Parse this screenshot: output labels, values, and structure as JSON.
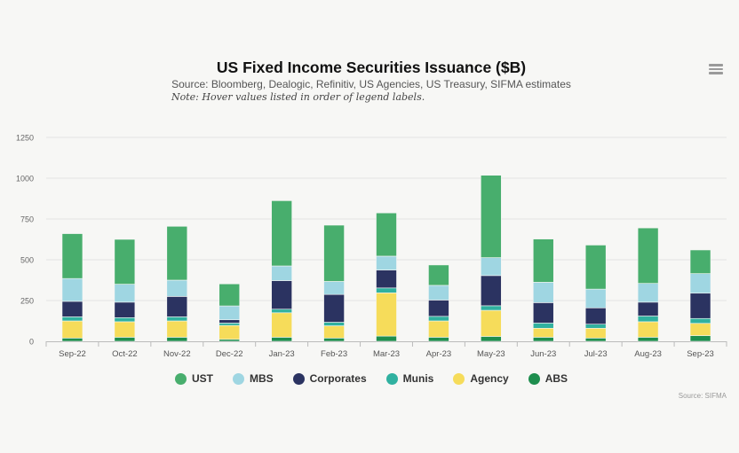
{
  "header": {
    "title": "US Fixed Income Securities Issuance ($B)",
    "subtitle": "Source: Bloomberg, Dealogic, Refinitiv, US Agencies, US Treasury, SIFMA estimates",
    "note": "Note: Hover values listed in order of legend labels."
  },
  "credit": "Source: SIFMA",
  "menu_icon": "hamburger-menu-icon",
  "colors": {
    "ABS": "#1e8e4e",
    "Agency": "#f6dc5a",
    "Munis": "#30b1a0",
    "Corporates": "#2b3361",
    "MBS": "#9fd6e2",
    "UST": "#48ae6d"
  },
  "chart_data": {
    "type": "bar",
    "stacked": true,
    "title": "US Fixed Income Securities Issuance ($B)",
    "categories": [
      "Sep-22",
      "Oct-22",
      "Nov-22",
      "Dec-22",
      "Jan-23",
      "Feb-23",
      "Mar-23",
      "Apr-23",
      "May-23",
      "Jun-23",
      "Jul-23",
      "Aug-23",
      "Sep-23"
    ],
    "ylim": [
      0,
      1250
    ],
    "yticks": [
      0,
      250,
      500,
      750,
      1000,
      1250
    ],
    "grid": true,
    "legend": "bottom",
    "series": [
      {
        "name": "ABS",
        "values": [
          20,
          25,
          25,
          12,
          25,
          20,
          32,
          25,
          30,
          25,
          20,
          25,
          35
        ]
      },
      {
        "name": "Agency",
        "values": [
          105,
          95,
          100,
          85,
          150,
          75,
          265,
          100,
          160,
          55,
          60,
          95,
          75
        ]
      },
      {
        "name": "Munis",
        "values": [
          25,
          25,
          25,
          15,
          22,
          22,
          30,
          28,
          28,
          32,
          25,
          35,
          30
        ]
      },
      {
        "name": "Corporates",
        "values": [
          95,
          95,
          125,
          20,
          175,
          170,
          110,
          100,
          185,
          125,
          100,
          85,
          155
        ]
      },
      {
        "name": "MBS",
        "values": [
          140,
          110,
          100,
          85,
          90,
          80,
          85,
          90,
          110,
          125,
          115,
          115,
          120
        ]
      },
      {
        "name": "UST",
        "values": [
          275,
          275,
          330,
          135,
          400,
          345,
          265,
          125,
          505,
          265,
          270,
          340,
          145
        ]
      }
    ]
  }
}
